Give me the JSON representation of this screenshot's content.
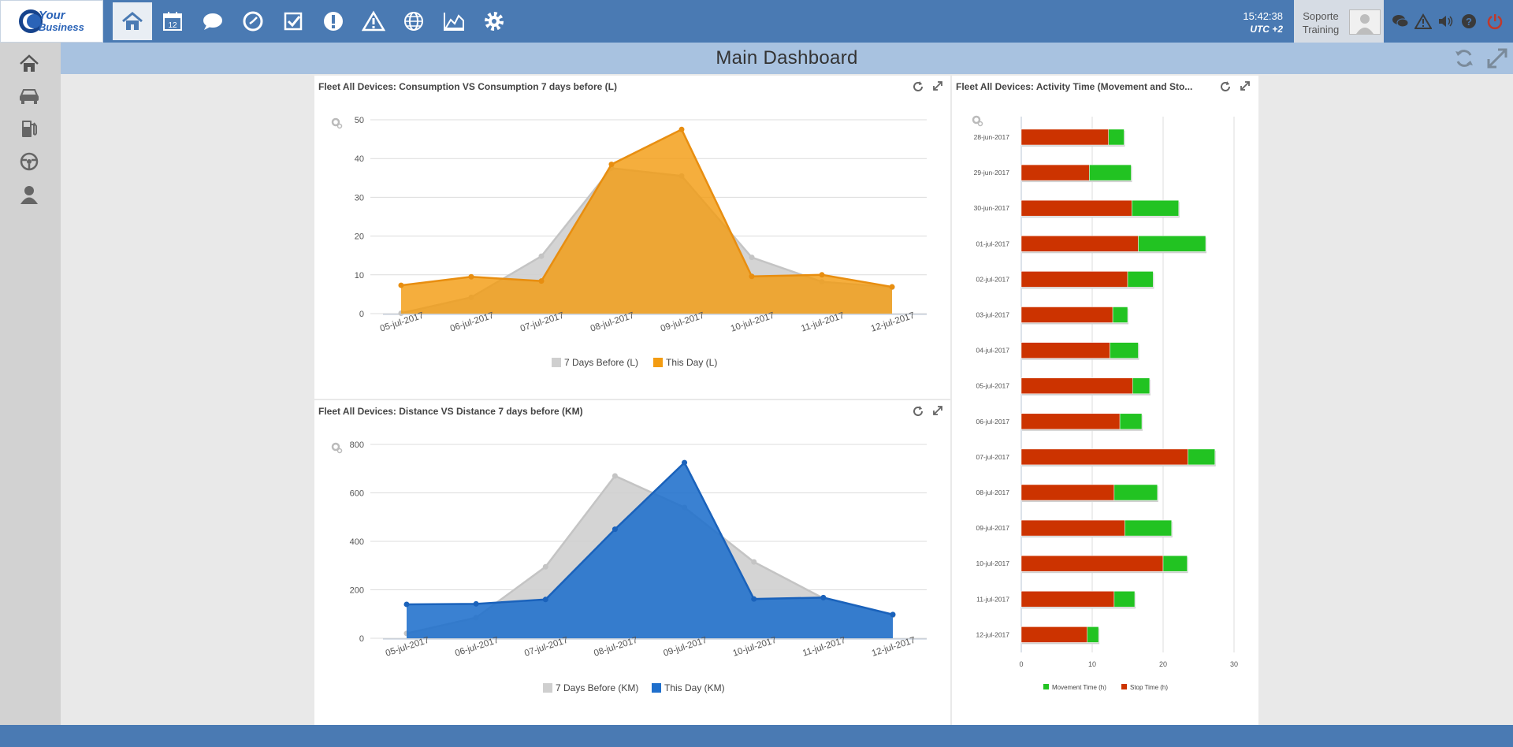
{
  "header": {
    "logo_text": "Your Business",
    "nav_icons": [
      "home-icon",
      "calendar-icon",
      "chat-icon",
      "clock-icon",
      "tasks-icon",
      "alert-icon",
      "warning-icon",
      "globe-icon",
      "chart-icon",
      "settings-icon"
    ],
    "calendar_day": "12",
    "time": "15:42:38",
    "timezone": "UTC +2",
    "user_line1": "Soporte",
    "user_line2": "Training",
    "right_icons": [
      "chat-bubbles-icon",
      "warning-icon",
      "volume-icon",
      "help-icon",
      "power-icon"
    ]
  },
  "sidebar": {
    "icons": [
      "home-icon",
      "car-icon",
      "fuel-icon",
      "steering-wheel-icon",
      "driver-icon"
    ]
  },
  "dashboard": {
    "title": "Main Dashboard"
  },
  "colors": {
    "accent": "#4a7ab3",
    "orange": "#f39c12",
    "blue": "#1f6fcc",
    "gray": "#cfcfcf",
    "stop": "#cc3300",
    "movement": "#22c322"
  },
  "chart_data": [
    {
      "type": "area",
      "title": "Fleet All Devices: Consumption VS Consumption 7 days before (L)",
      "categories": [
        "05-jul-2017",
        "06-jul-2017",
        "07-jul-2017",
        "08-jul-2017",
        "09-jul-2017",
        "10-jul-2017",
        "11-jul-2017",
        "12-jul-2017"
      ],
      "ylim": [
        0,
        50
      ],
      "yticks": [
        0,
        10,
        20,
        30,
        40,
        50
      ],
      "series": [
        {
          "name": "7 Days Before (L)",
          "values": [
            0.1,
            4.2,
            14.8,
            37.5,
            35.5,
            14.5,
            8.2,
            6.8
          ]
        },
        {
          "name": "This Day (L)",
          "values": [
            7.3,
            9.5,
            8.4,
            38.5,
            47.5,
            9.6,
            10.0,
            6.9
          ]
        }
      ],
      "legend": "bottom"
    },
    {
      "type": "area",
      "title": "Fleet All Devices: Distance VS Distance 7 days before (KM)",
      "categories": [
        "05-jul-2017",
        "06-jul-2017",
        "07-jul-2017",
        "08-jul-2017",
        "09-jul-2017",
        "10-jul-2017",
        "11-jul-2017",
        "12-jul-2017"
      ],
      "ylim": [
        0,
        800
      ],
      "yticks": [
        0,
        200,
        400,
        600,
        800
      ],
      "series": [
        {
          "name": "7 Days Before (KM)",
          "values": [
            20,
            85,
            295,
            670,
            540,
            315,
            165,
            95
          ]
        },
        {
          "name": "This Day (KM)",
          "values": [
            140,
            142,
            160,
            450,
            725,
            162,
            168,
            98
          ]
        }
      ],
      "legend": "bottom"
    },
    {
      "type": "bar",
      "orientation": "horizontal",
      "stacked": true,
      "title": "Fleet All Devices: Activity Time (Movement and Sto...",
      "categories": [
        "28-jun-2017",
        "29-jun-2017",
        "30-jun-2017",
        "01-jul-2017",
        "02-jul-2017",
        "03-jul-2017",
        "04-jul-2017",
        "05-jul-2017",
        "06-jul-2017",
        "07-jul-2017",
        "08-jul-2017",
        "09-jul-2017",
        "10-jul-2017",
        "11-jul-2017",
        "12-jul-2017"
      ],
      "xlim": [
        0,
        30
      ],
      "xticks": [
        0,
        10,
        20,
        30
      ],
      "series": [
        {
          "name": "Stop Time (h)",
          "values": [
            12.3,
            9.6,
            15.6,
            16.5,
            15.0,
            12.9,
            12.5,
            15.7,
            13.9,
            23.5,
            13.1,
            14.6,
            20.0,
            13.1,
            9.3
          ]
        },
        {
          "name": "Movement Time (h)",
          "values": [
            2.2,
            5.9,
            6.6,
            9.5,
            3.6,
            2.1,
            4.0,
            2.4,
            3.1,
            3.8,
            6.1,
            6.6,
            3.4,
            2.9,
            1.6
          ]
        }
      ],
      "legend": "bottom"
    }
  ]
}
